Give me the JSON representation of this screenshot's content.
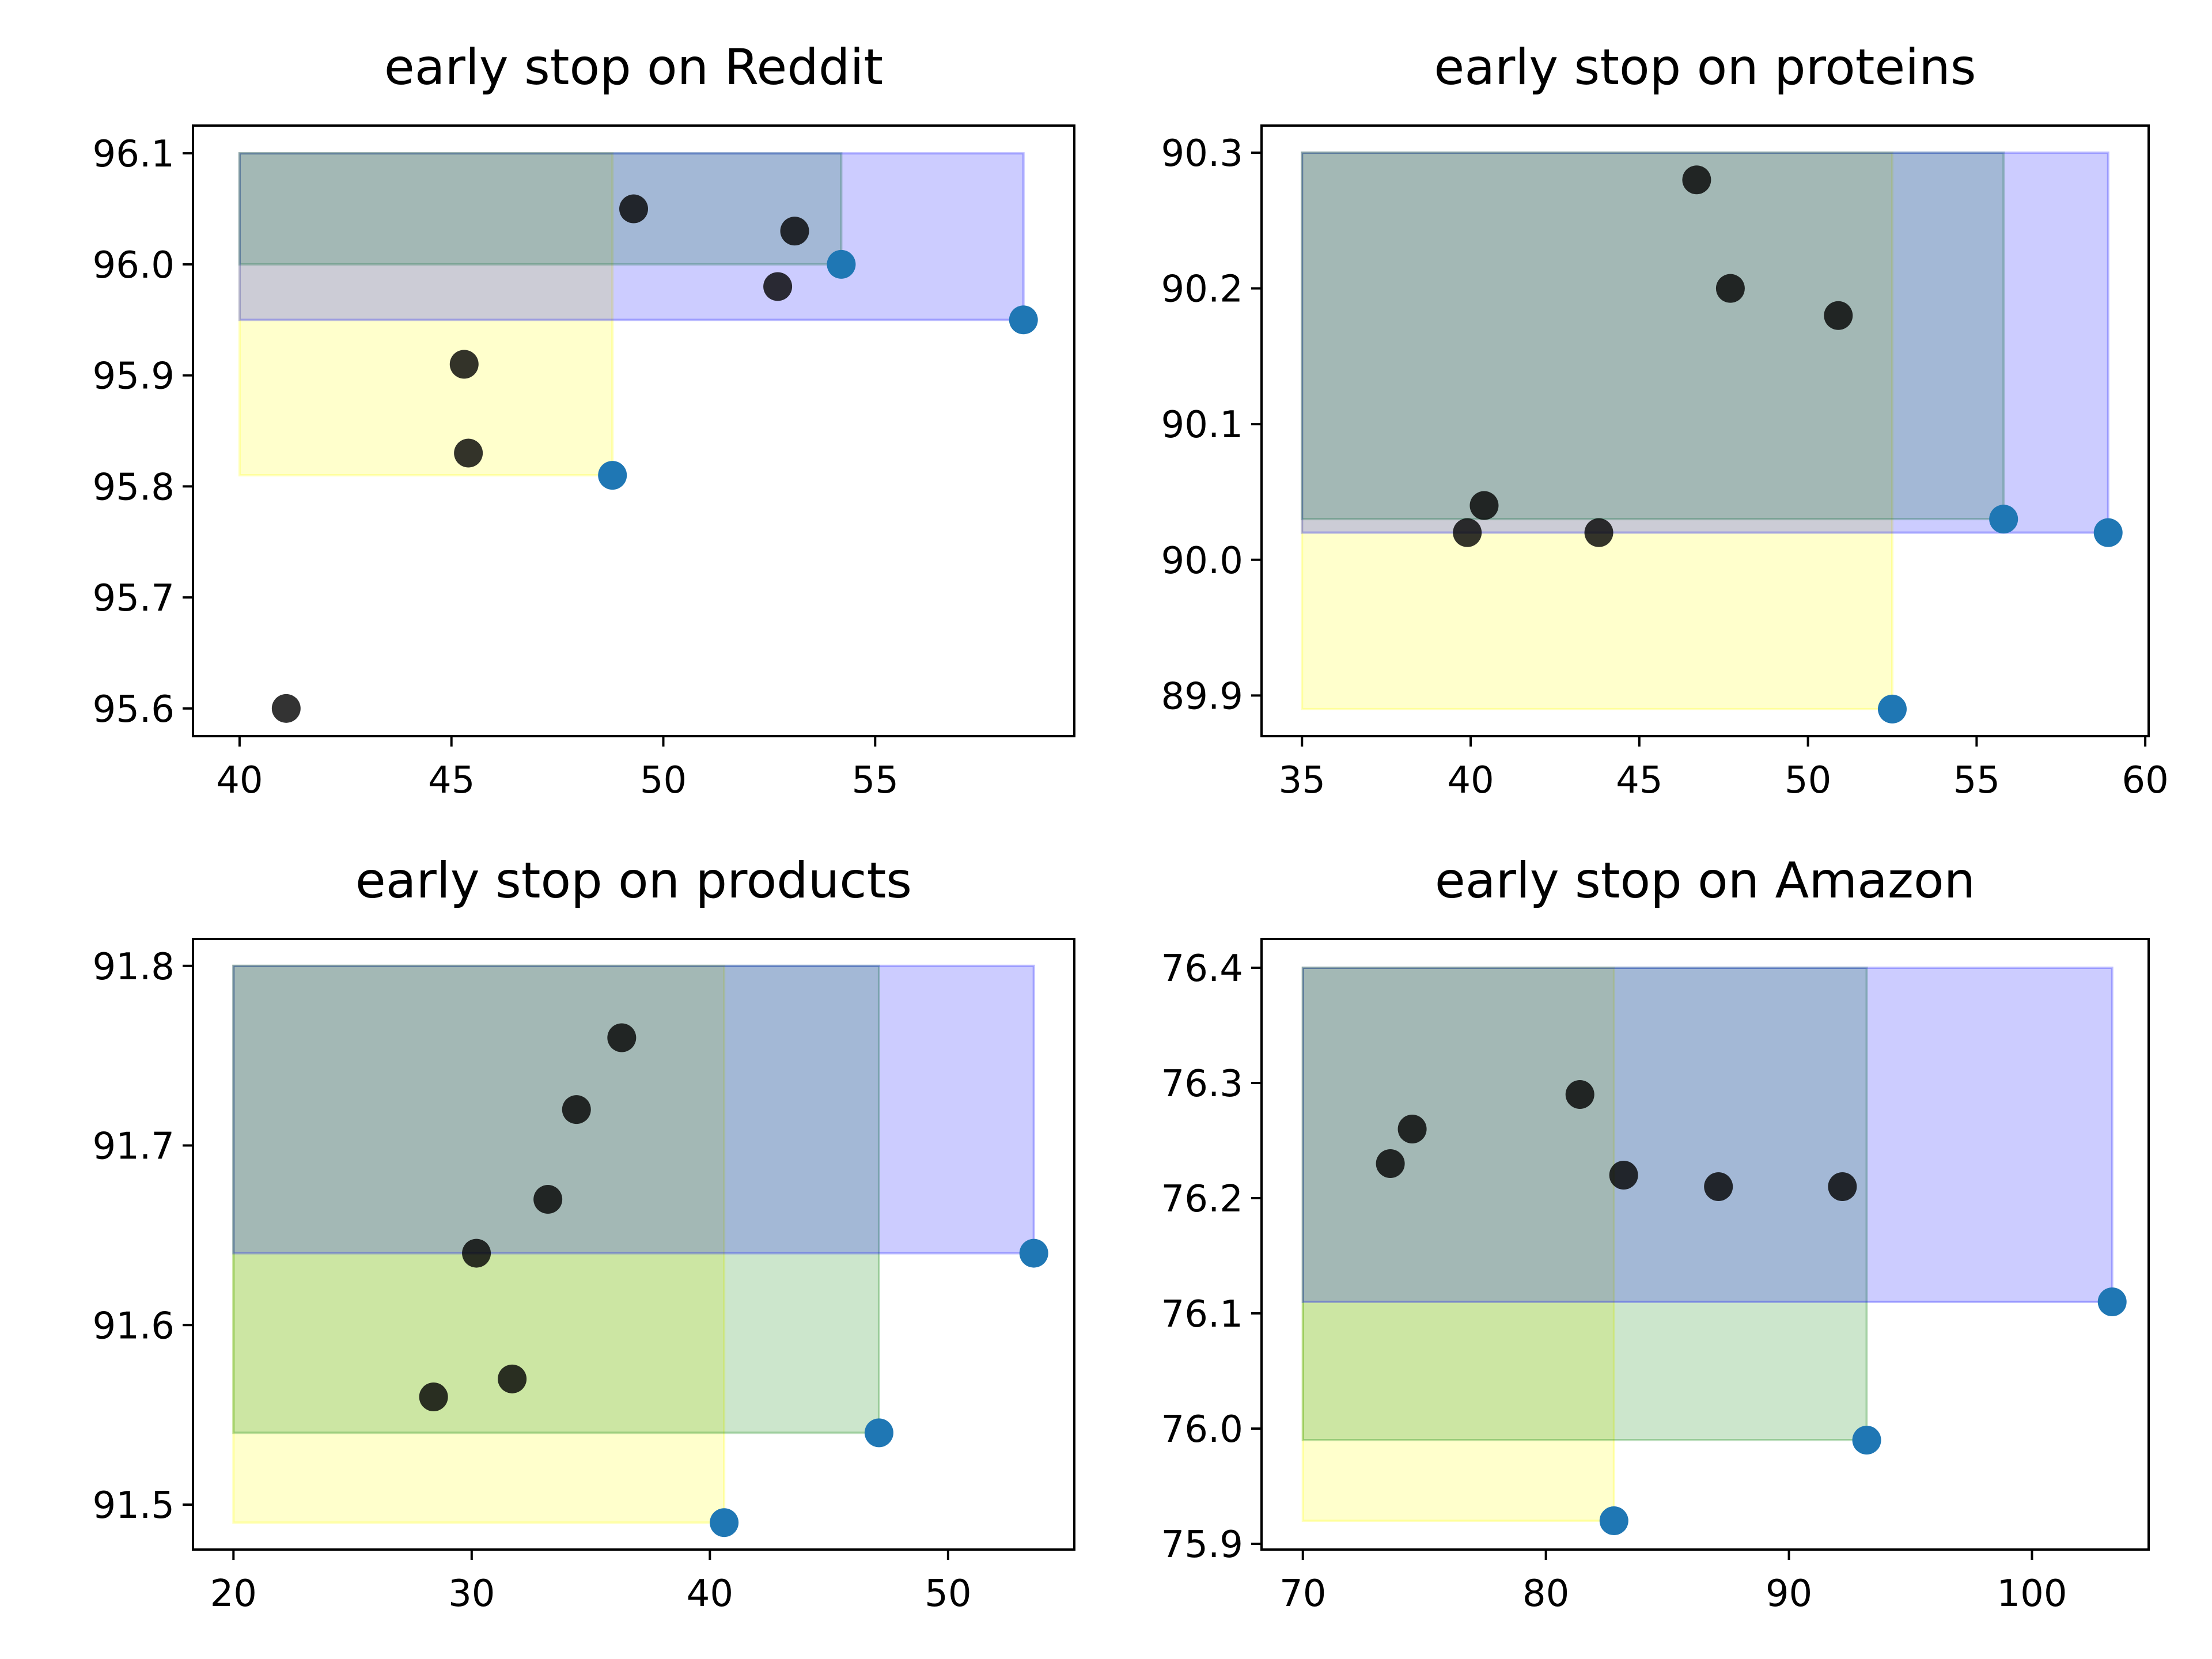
{
  "colors": {
    "region_yellow": "#ffff00",
    "region_green": "#008000",
    "region_blue": "#0000ff",
    "frontier_point": "#1f77b4",
    "trial_point": "#000000"
  },
  "chart_data": [
    {
      "type": "scatter",
      "title": "early stop on Reddit",
      "xlabel": "",
      "ylabel": "",
      "xlim": [
        38.9,
        59.7
      ],
      "ylim": [
        95.575,
        96.125
      ],
      "xticks": [
        40,
        45,
        50,
        55
      ],
      "xtick_labels": [
        "40",
        "45",
        "50",
        "55"
      ],
      "yticks": [
        95.6,
        95.7,
        95.8,
        95.9,
        96.0,
        96.1
      ],
      "ytick_labels": [
        "95.6",
        "95.7",
        "95.8",
        "95.9",
        "96.0",
        "96.1"
      ],
      "regions": [
        {
          "color": "yellow",
          "x0": 40,
          "x1": 48.8,
          "y0": 95.81,
          "y1": 96.1
        },
        {
          "color": "green",
          "x0": 40,
          "x1": 54.2,
          "y0": 96.0,
          "y1": 96.1
        },
        {
          "color": "blue",
          "x0": 40,
          "x1": 58.5,
          "y0": 95.95,
          "y1": 96.1
        }
      ],
      "frontier_points": [
        {
          "x": 48.8,
          "y": 95.81
        },
        {
          "x": 54.2,
          "y": 96.0
        },
        {
          "x": 58.5,
          "y": 95.95
        }
      ],
      "trial_points": [
        {
          "x": 41.1,
          "y": 95.6
        },
        {
          "x": 45.3,
          "y": 95.91
        },
        {
          "x": 45.4,
          "y": 95.83
        },
        {
          "x": 49.3,
          "y": 96.05
        },
        {
          "x": 52.7,
          "y": 95.98
        },
        {
          "x": 53.1,
          "y": 96.03
        }
      ]
    },
    {
      "type": "scatter",
      "title": "early stop on proteins",
      "xlabel": "",
      "ylabel": "",
      "xlim": [
        33.8,
        60.1
      ],
      "ylim": [
        89.87,
        90.32
      ],
      "xticks": [
        35,
        40,
        45,
        50,
        55,
        60
      ],
      "xtick_labels": [
        "35",
        "40",
        "45",
        "50",
        "55",
        "60"
      ],
      "yticks": [
        89.9,
        90.0,
        90.1,
        90.2,
        90.3
      ],
      "ytick_labels": [
        "89.9",
        "90.0",
        "90.1",
        "90.2",
        "90.3"
      ],
      "regions": [
        {
          "color": "yellow",
          "x0": 35,
          "x1": 52.5,
          "y0": 89.89,
          "y1": 90.3
        },
        {
          "color": "green",
          "x0": 35,
          "x1": 55.8,
          "y0": 90.03,
          "y1": 90.3
        },
        {
          "color": "blue",
          "x0": 35,
          "x1": 58.9,
          "y0": 90.02,
          "y1": 90.3
        }
      ],
      "frontier_points": [
        {
          "x": 52.5,
          "y": 89.89
        },
        {
          "x": 55.8,
          "y": 90.03
        },
        {
          "x": 58.9,
          "y": 90.02
        }
      ],
      "trial_points": [
        {
          "x": 39.9,
          "y": 90.02
        },
        {
          "x": 40.4,
          "y": 90.04
        },
        {
          "x": 43.8,
          "y": 90.02
        },
        {
          "x": 46.7,
          "y": 90.28
        },
        {
          "x": 47.7,
          "y": 90.2
        },
        {
          "x": 50.9,
          "y": 90.18
        }
      ]
    },
    {
      "type": "scatter",
      "title": "early stop on products",
      "xlabel": "",
      "ylabel": "",
      "xlim": [
        18.3,
        55.3
      ],
      "ylim": [
        91.475,
        91.815
      ],
      "xticks": [
        20,
        30,
        40,
        50
      ],
      "xtick_labels": [
        "20",
        "30",
        "40",
        "50"
      ],
      "yticks": [
        91.5,
        91.6,
        91.7,
        91.8
      ],
      "ytick_labels": [
        "91.5",
        "91.6",
        "91.7",
        "91.8"
      ],
      "regions": [
        {
          "color": "yellow",
          "x0": 20,
          "x1": 40.6,
          "y0": 91.49,
          "y1": 91.8
        },
        {
          "color": "green",
          "x0": 20,
          "x1": 47.1,
          "y0": 91.54,
          "y1": 91.8
        },
        {
          "color": "blue",
          "x0": 20,
          "x1": 53.6,
          "y0": 91.64,
          "y1": 91.8
        }
      ],
      "frontier_points": [
        {
          "x": 40.6,
          "y": 91.49
        },
        {
          "x": 47.1,
          "y": 91.54
        },
        {
          "x": 53.6,
          "y": 91.64
        }
      ],
      "trial_points": [
        {
          "x": 28.4,
          "y": 91.56
        },
        {
          "x": 30.2,
          "y": 91.64
        },
        {
          "x": 31.7,
          "y": 91.57
        },
        {
          "x": 33.2,
          "y": 91.67
        },
        {
          "x": 34.4,
          "y": 91.72
        },
        {
          "x": 36.3,
          "y": 91.76
        }
      ]
    },
    {
      "type": "scatter",
      "title": "early stop on Amazon",
      "xlabel": "",
      "ylabel": "",
      "xlim": [
        68.3,
        104.8
      ],
      "ylim": [
        75.895,
        76.425
      ],
      "xticks": [
        70,
        80,
        90,
        100
      ],
      "xtick_labels": [
        "70",
        "80",
        "90",
        "100"
      ],
      "yticks": [
        75.9,
        76.0,
        76.1,
        76.2,
        76.3,
        76.4
      ],
      "ytick_labels": [
        "75.9",
        "76.0",
        "76.1",
        "76.2",
        "76.3",
        "76.4"
      ],
      "regions": [
        {
          "color": "yellow",
          "x0": 70,
          "x1": 82.8,
          "y0": 75.92,
          "y1": 76.4
        },
        {
          "color": "green",
          "x0": 70,
          "x1": 93.2,
          "y0": 75.99,
          "y1": 76.4
        },
        {
          "color": "blue",
          "x0": 70,
          "x1": 103.3,
          "y0": 76.11,
          "y1": 76.4
        }
      ],
      "frontier_points": [
        {
          "x": 82.8,
          "y": 75.92
        },
        {
          "x": 93.2,
          "y": 75.99
        },
        {
          "x": 103.3,
          "y": 76.11
        }
      ],
      "trial_points": [
        {
          "x": 73.6,
          "y": 76.23
        },
        {
          "x": 74.5,
          "y": 76.26
        },
        {
          "x": 81.4,
          "y": 76.29
        },
        {
          "x": 83.2,
          "y": 76.22
        },
        {
          "x": 87.1,
          "y": 76.21
        },
        {
          "x": 92.2,
          "y": 76.21
        }
      ]
    }
  ]
}
